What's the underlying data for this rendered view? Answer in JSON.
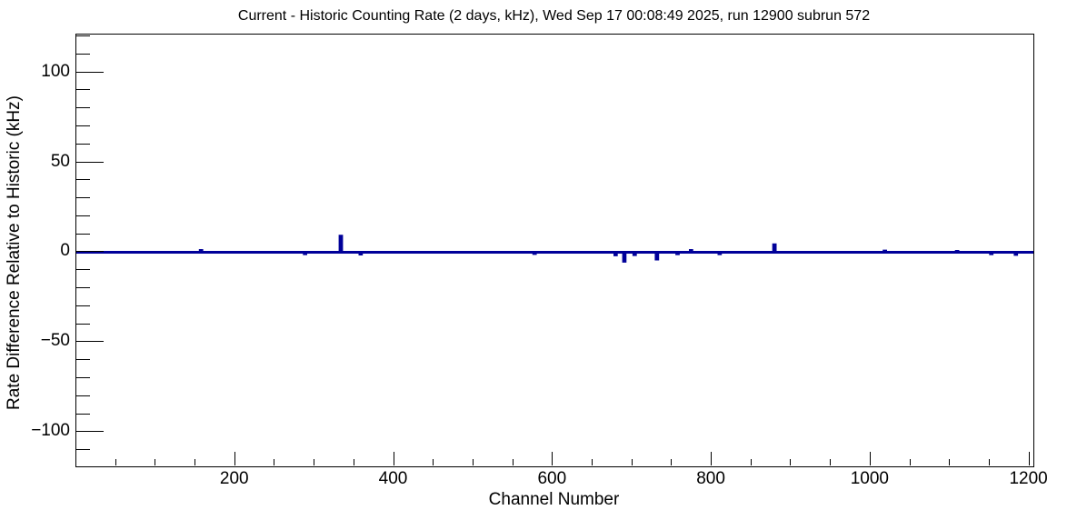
{
  "window": {
    "kind": "root-canvas-plot"
  },
  "chart_data": {
    "type": "line",
    "title": "Current - Historic Counting Rate (2 days, kHz), Wed Sep 17 00:08:49 2025, run 12900 subrun 572",
    "xlabel": "Channel Number",
    "ylabel": "Rate Difference Relative to Historic (kHz)",
    "xlim": [
      0,
      1205
    ],
    "ylim": [
      -119,
      121
    ],
    "grid": false,
    "legend": "none",
    "line_color": "#000099",
    "line_width": 3,
    "baseline_value": 0,
    "x_major_ticks": [
      200,
      400,
      600,
      800,
      1000,
      1200
    ],
    "x_tick_labels": [
      "200",
      "400",
      "600",
      "800",
      "1000",
      "1200"
    ],
    "x_minor_step": 50,
    "y_major_ticks": [
      100,
      50,
      0,
      -50,
      -100
    ],
    "y_tick_labels": [
      "100",
      "50",
      "0",
      "−50",
      "−100"
    ],
    "y_minor_step": 10,
    "spikes": [
      {
        "channel": 157,
        "value": 1.0
      },
      {
        "channel": 288,
        "value": -0.8
      },
      {
        "channel": 333,
        "value": 9.0
      },
      {
        "channel": 358,
        "value": -1.0
      },
      {
        "channel": 577,
        "value": -0.7
      },
      {
        "channel": 679,
        "value": -1.5
      },
      {
        "channel": 690,
        "value": -5.0
      },
      {
        "channel": 703,
        "value": -1.3
      },
      {
        "channel": 731,
        "value": -3.8
      },
      {
        "channel": 757,
        "value": -0.8
      },
      {
        "channel": 774,
        "value": 1.0
      },
      {
        "channel": 810,
        "value": -0.8
      },
      {
        "channel": 879,
        "value": 4.2
      },
      {
        "channel": 1018,
        "value": 0.7
      },
      {
        "channel": 1109,
        "value": 0.5
      },
      {
        "channel": 1152,
        "value": -0.8
      },
      {
        "channel": 1183,
        "value": -1.2
      }
    ]
  }
}
